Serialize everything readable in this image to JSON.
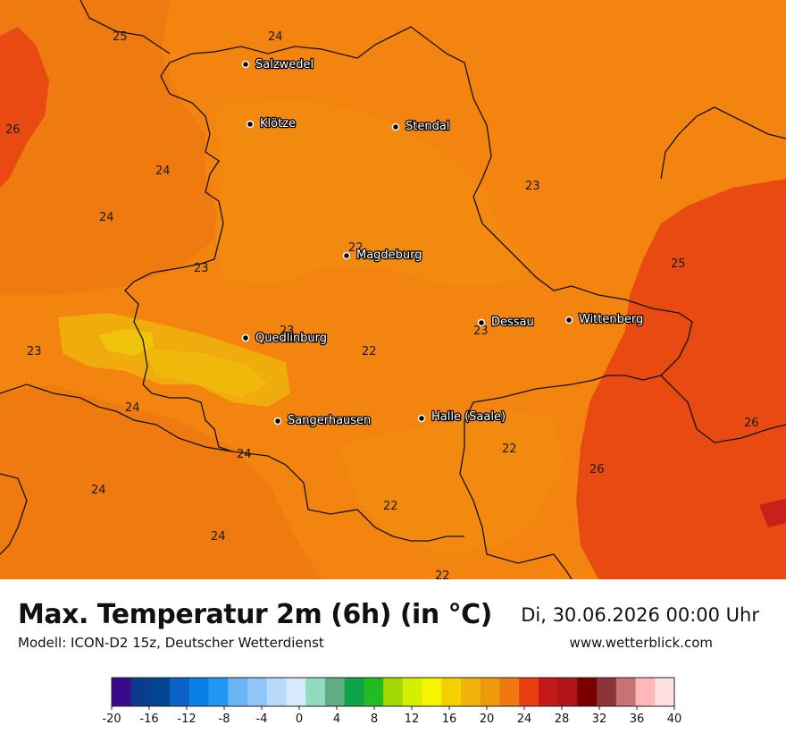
{
  "header": {
    "title": "Max. Temperatur 2m (6h) (in °C)",
    "model": "Modell: ICON-D2 15z, Deutscher Wetterdienst",
    "date": "Di, 30.06.2026 00:00 Uhr",
    "site": "www.wetterblick.com"
  },
  "cities": [
    {
      "name": "Salzwedel"
    },
    {
      "name": "Klötze"
    },
    {
      "name": "Stendal"
    },
    {
      "name": "Magdeburg"
    },
    {
      "name": "Dessau"
    },
    {
      "name": "Wittenberg"
    },
    {
      "name": "Quedlinburg"
    },
    {
      "name": "Sangerhausen"
    },
    {
      "name": "Halle (Saale)"
    }
  ],
  "temps": [
    "25",
    "24",
    "26",
    "24",
    "24",
    "23",
    "22",
    "23",
    "25",
    "23",
    "22",
    "23",
    "23",
    "22",
    "26",
    "24",
    "26",
    "24",
    "24",
    "22",
    "24",
    "22"
  ],
  "legend": {
    "ticks": [
      "-20",
      "-16",
      "-12",
      "-8",
      "-4",
      "0",
      "4",
      "8",
      "12",
      "16",
      "20",
      "24",
      "28",
      "32",
      "36",
      "40"
    ],
    "colors": [
      "#3b0a8c",
      "#0b3c8c",
      "#004590",
      "#0a62c4",
      "#0a7fe6",
      "#2196f3",
      "#6cb5f5",
      "#90c6f7",
      "#b8dafa",
      "#d6eafc",
      "#92dbc0",
      "#5fac86",
      "#0fa34a",
      "#22bb22",
      "#a3d800",
      "#d4ef00",
      "#f5f500",
      "#f4d000",
      "#f1b50a",
      "#ef9a0c",
      "#f07810",
      "#e93e12",
      "#c4191a",
      "#b01418",
      "#7a0000",
      "#8c3536",
      "#c77375",
      "#ffb8b8",
      "#ffe0e0"
    ]
  }
}
